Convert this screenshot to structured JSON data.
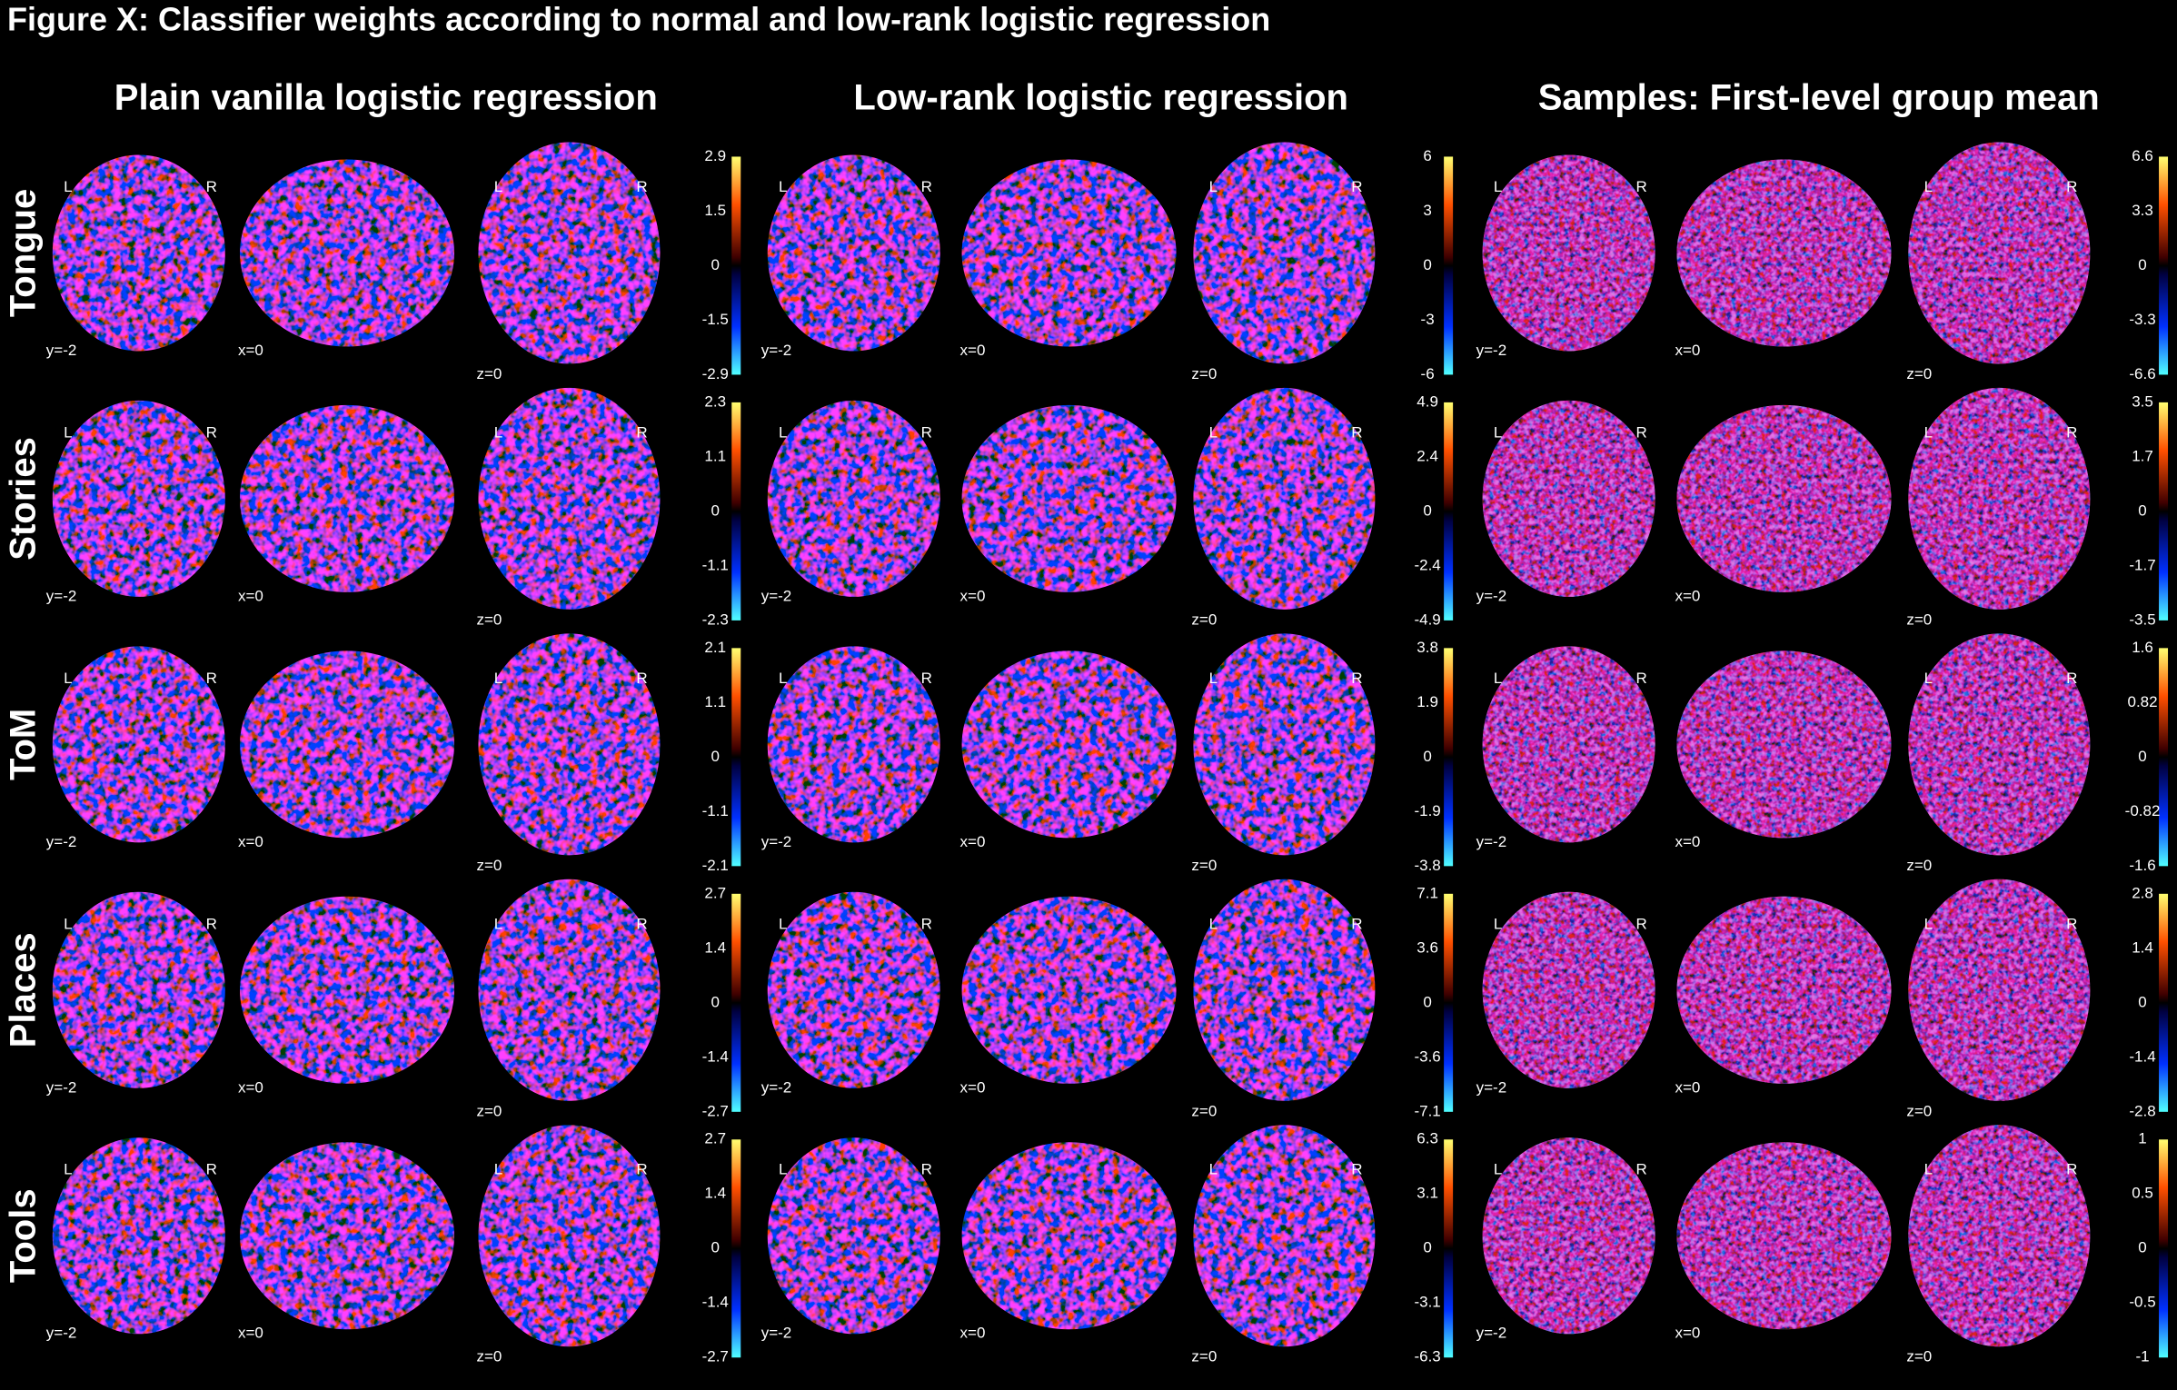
{
  "title": "Figure X: Classifier weights according to normal and low-rank logistic regression",
  "rows": [
    "Tongue",
    "Stories",
    "ToM",
    "Places",
    "Tools"
  ],
  "views": {
    "left": "L",
    "right": "R",
    "coronal": "y=-2",
    "sagittal": "x=0",
    "axial": "z=0"
  },
  "columns": [
    {
      "title": "Plain vanilla logistic regression",
      "colorbars": [
        [
          "2.9",
          "1.5",
          "0",
          "-1.5",
          "-2.9"
        ],
        [
          "2.3",
          "1.1",
          "0",
          "-1.1",
          "-2.3"
        ],
        [
          "2.1",
          "1.1",
          "0",
          "-1.1",
          "-2.1"
        ],
        [
          "2.7",
          "1.4",
          "0",
          "-1.4",
          "-2.7"
        ],
        [
          "2.7",
          "1.4",
          "0",
          "-1.4",
          "-2.7"
        ]
      ]
    },
    {
      "title": "Low-rank logistic regression",
      "colorbars": [
        [
          "6",
          "3",
          "0",
          "-3",
          "-6"
        ],
        [
          "4.9",
          "2.4",
          "0",
          "-2.4",
          "-4.9"
        ],
        [
          "3.8",
          "1.9",
          "0",
          "-1.9",
          "-3.8"
        ],
        [
          "7.1",
          "3.6",
          "0",
          "-3.6",
          "-7.1"
        ],
        [
          "6.3",
          "3.1",
          "0",
          "-3.1",
          "-6.3"
        ]
      ]
    },
    {
      "title": "Samples: First-level group mean",
      "colorbars": [
        [
          "6.6",
          "3.3",
          "0",
          "-3.3",
          "-6.6"
        ],
        [
          "3.5",
          "1.7",
          "0",
          "-1.7",
          "-3.5"
        ],
        [
          "1.6",
          "0.82",
          "0",
          "-0.82",
          "-1.6"
        ],
        [
          "2.8",
          "1.4",
          "0",
          "-1.4",
          "-2.8"
        ],
        [
          "1",
          "0.5",
          "0",
          "-0.5",
          "-1"
        ]
      ]
    }
  ]
}
